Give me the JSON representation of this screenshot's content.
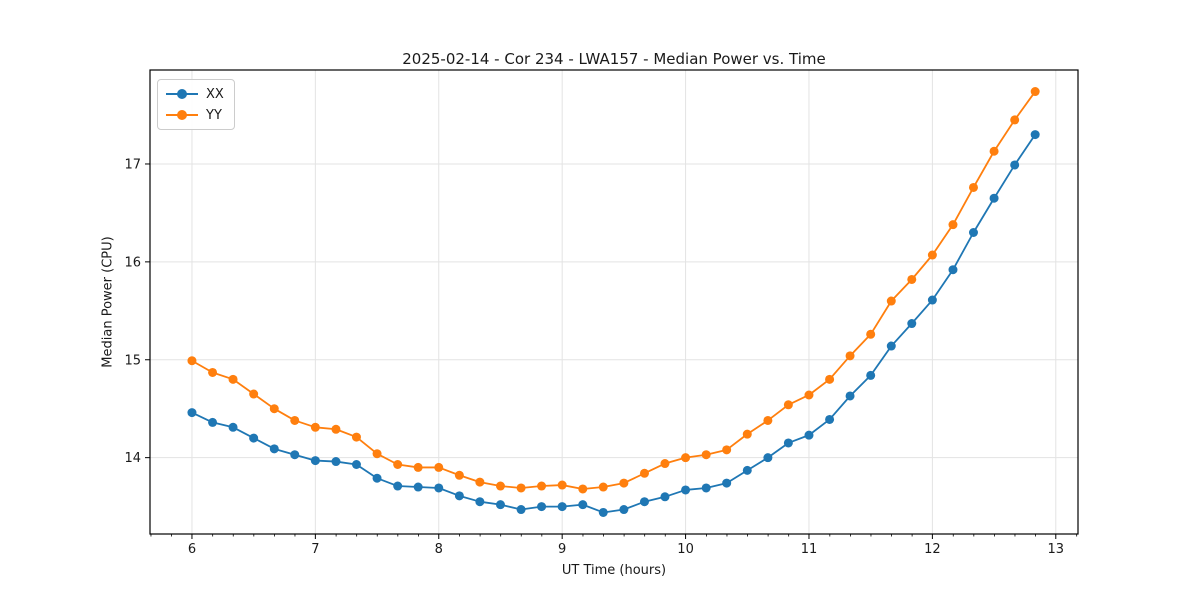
{
  "figure": {
    "background": "#ffffff",
    "text_color": "#1a1a1a"
  },
  "chart_data": {
    "type": "line",
    "title": "2025-02-14 - Cor 234 - LWA157 - Median Power vs. Time",
    "xlabel": "UT Time (hours)",
    "ylabel": "Median Power (CPU)",
    "xlim": [
      5.66,
      13.18
    ],
    "ylim": [
      13.22,
      17.96
    ],
    "x_ticks": [
      6,
      7,
      8,
      9,
      10,
      11,
      12,
      13
    ],
    "y_ticks": [
      14,
      15,
      16,
      17
    ],
    "x_minor_step": 0.1667,
    "grid": true,
    "grid_color": "#e3e3e3",
    "spine_color": "#000000",
    "legend_position": "upper-left",
    "marker": "circle",
    "x": [
      6.0,
      6.167,
      6.333,
      6.5,
      6.667,
      6.833,
      7.0,
      7.167,
      7.333,
      7.5,
      7.667,
      7.833,
      8.0,
      8.167,
      8.333,
      8.5,
      8.667,
      8.833,
      9.0,
      9.167,
      9.333,
      9.5,
      9.667,
      9.833,
      10.0,
      10.167,
      10.333,
      10.5,
      10.667,
      10.833,
      11.0,
      11.167,
      11.333,
      11.5,
      11.667,
      11.833,
      12.0,
      12.167,
      12.333,
      12.5,
      12.667,
      12.833
    ],
    "series": [
      {
        "name": "XX",
        "color": "#1f77b4",
        "values": [
          14.46,
          14.36,
          14.31,
          14.2,
          14.09,
          14.03,
          13.97,
          13.96,
          13.93,
          13.79,
          13.71,
          13.7,
          13.69,
          13.61,
          13.55,
          13.52,
          13.47,
          13.5,
          13.5,
          13.52,
          13.44,
          13.47,
          13.55,
          13.6,
          13.67,
          13.69,
          13.74,
          13.87,
          14.0,
          14.15,
          14.23,
          14.39,
          14.63,
          14.84,
          15.14,
          15.37,
          15.61,
          15.92,
          16.3,
          16.65,
          16.99,
          17.3
        ]
      },
      {
        "name": "YY",
        "color": "#ff7f0e",
        "values": [
          14.99,
          14.87,
          14.8,
          14.65,
          14.5,
          14.38,
          14.31,
          14.29,
          14.21,
          14.04,
          13.93,
          13.9,
          13.9,
          13.82,
          13.75,
          13.71,
          13.69,
          13.71,
          13.72,
          13.68,
          13.7,
          13.74,
          13.84,
          13.94,
          14.0,
          14.03,
          14.08,
          14.24,
          14.38,
          14.54,
          14.64,
          14.8,
          15.04,
          15.26,
          15.6,
          15.82,
          16.07,
          16.38,
          16.76,
          17.13,
          17.45,
          17.74
        ]
      }
    ]
  }
}
